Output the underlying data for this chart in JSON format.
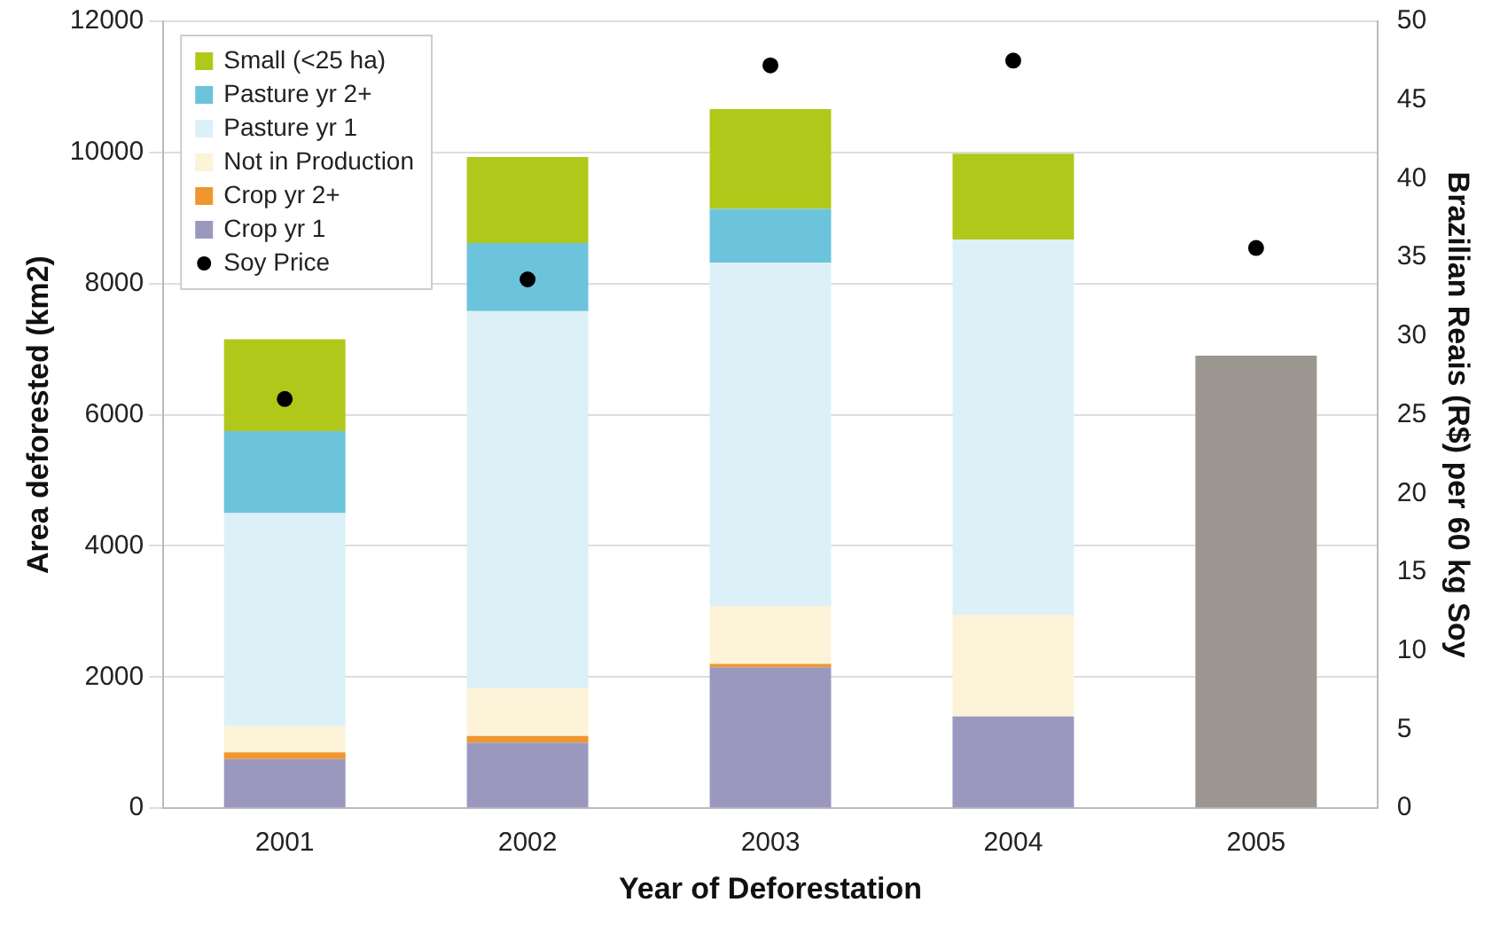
{
  "chart_data": {
    "type": "bar",
    "xlabel": "Year of Deforestation",
    "ylabel": "Area deforested (km2)",
    "y2label": "Brazilian Reais (R$) per 60 kg Soy",
    "categories": [
      "2001",
      "2002",
      "2003",
      "2004",
      "2005"
    ],
    "stacked": true,
    "series": [
      {
        "name": "Crop yr 1",
        "color": "#9b98c0",
        "values": [
          750,
          1000,
          2150,
          1400,
          null
        ]
      },
      {
        "name": "Crop yr 2+",
        "color": "#f0962e",
        "values": [
          100,
          100,
          50,
          null,
          null
        ]
      },
      {
        "name": "Not in Production",
        "color": "#fdf3d8",
        "values": [
          400,
          730,
          880,
          1550,
          null
        ]
      },
      {
        "name": "Pasture yr 1",
        "color": "#dcf0f8",
        "values": [
          3250,
          5750,
          5240,
          5720,
          null
        ]
      },
      {
        "name": "Pasture yr 2+",
        "color": "#6cc3dc",
        "values": [
          1250,
          1040,
          820,
          null,
          null
        ]
      },
      {
        "name": "Small (<25 ha)",
        "color": "#b0c81a",
        "values": [
          1400,
          1310,
          1520,
          1310,
          null
        ]
      },
      {
        "color": "#9c9690",
        "values": [
          null,
          null,
          null,
          null,
          6900
        ]
      },
      {
        "name": "Soy Price",
        "type": "scatter",
        "axis": "y2",
        "color": "#000000",
        "values": [
          26,
          33.6,
          47.2,
          47.5,
          35.6
        ]
      }
    ],
    "ylim": [
      0,
      12000
    ],
    "yticks": [
      0,
      2000,
      4000,
      6000,
      8000,
      10000,
      12000
    ],
    "y2lim": [
      0,
      50
    ],
    "y2ticks": [
      0,
      5,
      10,
      15,
      20,
      25,
      30,
      35,
      40,
      45,
      50
    ],
    "grid": "y",
    "legend": "top left",
    "marker": "circle"
  }
}
